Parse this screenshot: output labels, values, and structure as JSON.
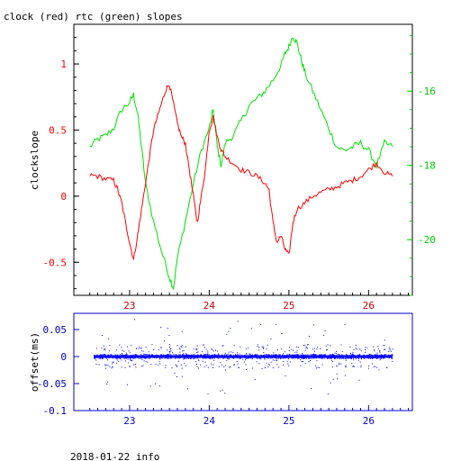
{
  "chart_data": [
    {
      "type": "line",
      "title": "clock (red) rtc (green) slopes",
      "ylabel": "clockslope",
      "xlabel": "",
      "x_ticks": [
        "23",
        "24",
        "25",
        "26"
      ],
      "xlim": [
        22.3,
        26.55
      ],
      "ylim": [
        -0.75,
        1.3
      ],
      "y_ticks": [
        "-0.5",
        "0",
        "0.5",
        "1"
      ],
      "y2lim": [
        -21.5,
        -14.2
      ],
      "y2_ticks": [
        "-16",
        "-18",
        "-20"
      ],
      "grid": false,
      "colors": {
        "clock": "#ff0000",
        "rtc": "#00e000",
        "axes_left": "#000000",
        "axes_x": "#cc0000",
        "axes_right": "#00cc00"
      },
      "series": [
        {
          "name": "clock",
          "axis": "left",
          "x": [
            22.5,
            22.6,
            22.7,
            22.8,
            22.85,
            22.9,
            22.95,
            23.0,
            23.05,
            23.1,
            23.15,
            23.2,
            23.25,
            23.3,
            23.35,
            23.4,
            23.45,
            23.5,
            23.55,
            23.6,
            23.65,
            23.7,
            23.75,
            23.8,
            23.85,
            23.9,
            23.95,
            24.0,
            24.05,
            24.1,
            24.15,
            24.2,
            24.3,
            24.4,
            24.5,
            24.6,
            24.7,
            24.75,
            24.8,
            24.85,
            24.9,
            24.95,
            25.0,
            25.05,
            25.1,
            25.2,
            25.3,
            25.4,
            25.5,
            25.6,
            25.7,
            25.8,
            25.9,
            26.0,
            26.1,
            26.2,
            26.3
          ],
          "y": [
            0.16,
            0.15,
            0.13,
            0.12,
            0.05,
            -0.05,
            -0.2,
            -0.35,
            -0.48,
            -0.3,
            -0.1,
            0.1,
            0.3,
            0.5,
            0.6,
            0.7,
            0.8,
            0.85,
            0.7,
            0.55,
            0.45,
            0.4,
            0.2,
            0.0,
            -0.2,
            0.0,
            0.2,
            0.5,
            0.6,
            0.45,
            0.35,
            0.3,
            0.25,
            0.2,
            0.18,
            0.15,
            0.1,
            0.05,
            -0.2,
            -0.35,
            -0.3,
            -0.4,
            -0.45,
            -0.2,
            -0.1,
            -0.05,
            0.0,
            0.03,
            0.05,
            0.07,
            0.1,
            0.12,
            0.15,
            0.2,
            0.25,
            0.18,
            0.15
          ]
        },
        {
          "name": "rtc",
          "axis": "right",
          "x": [
            22.5,
            22.6,
            22.7,
            22.8,
            22.9,
            23.0,
            23.05,
            23.1,
            23.15,
            23.2,
            23.3,
            23.4,
            23.5,
            23.55,
            23.6,
            23.7,
            23.8,
            23.9,
            24.0,
            24.05,
            24.1,
            24.15,
            24.2,
            24.3,
            24.4,
            24.5,
            24.6,
            24.7,
            24.8,
            24.9,
            24.95,
            25.0,
            25.05,
            25.1,
            25.15,
            25.2,
            25.3,
            25.4,
            25.5,
            25.6,
            25.7,
            25.8,
            25.9,
            26.0,
            26.1,
            26.2,
            26.3
          ],
          "y": [
            -17.5,
            -17.3,
            -17.2,
            -17.0,
            -16.5,
            -16.3,
            -16.1,
            -16.6,
            -17.5,
            -18.5,
            -19.5,
            -20.3,
            -21.0,
            -21.3,
            -20.5,
            -19.5,
            -18.5,
            -17.6,
            -17.0,
            -16.5,
            -17.5,
            -18.0,
            -17.4,
            -17.2,
            -16.8,
            -16.4,
            -16.2,
            -16.0,
            -15.7,
            -15.3,
            -15.0,
            -14.8,
            -14.5,
            -14.7,
            -15.1,
            -15.5,
            -16.0,
            -16.5,
            -17.0,
            -17.5,
            -17.6,
            -17.5,
            -17.4,
            -17.6,
            -18.0,
            -17.4,
            -17.5
          ]
        }
      ]
    },
    {
      "type": "scatter",
      "title": "",
      "ylabel": "offset(ms)",
      "xlabel": "",
      "x_ticks": [
        "23",
        "24",
        "25",
        "26"
      ],
      "xlim": [
        22.3,
        26.55
      ],
      "ylim": [
        -0.1,
        0.08
      ],
      "y_ticks": [
        "0.05",
        "0",
        "-0.05",
        "-0.1"
      ],
      "grid": false,
      "colors": {
        "points": "#0000ff",
        "axes": "#0000cc"
      },
      "series": [
        {
          "name": "offset",
          "x_range": [
            22.55,
            26.3
          ],
          "y_center": 0,
          "typical_spread": 0.01,
          "max_spread": 0.07
        }
      ]
    }
  ],
  "footer": {
    "date_info": "2018-01-22 info"
  }
}
